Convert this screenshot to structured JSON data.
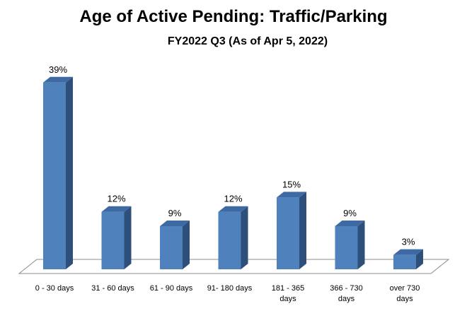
{
  "chart_data": {
    "type": "bar",
    "title": "Age of Active Pending: Traffic/Parking",
    "subtitle": "FY2022 Q3 (As of Apr 5, 2022)",
    "categories": [
      "0 - 30 days",
      "31 - 60 days",
      "61 - 90 days",
      "91- 180 days",
      "181 - 365 days",
      "366 - 730 days",
      "over 730 days"
    ],
    "category_lines": [
      [
        "0 - 30 days"
      ],
      [
        "31 - 60 days"
      ],
      [
        "61 - 90 days"
      ],
      [
        "91- 180 days"
      ],
      [
        "181 - 365",
        "days"
      ],
      [
        "366 - 730",
        "days"
      ],
      [
        "over 730",
        "days"
      ]
    ],
    "values": [
      39,
      12,
      9,
      12,
      15,
      9,
      3
    ],
    "data_labels": [
      "39%",
      "12%",
      "9%",
      "12%",
      "15%",
      "9%",
      "3%"
    ],
    "unit": "%",
    "ylim": [
      0,
      40
    ],
    "grid": false,
    "legend": "none",
    "colors": {
      "bar_front": "#4F81BD",
      "bar_side": "#2E4F7A",
      "bar_top": "#3E6AA3",
      "floor_stroke": "#8C8C8C"
    }
  }
}
